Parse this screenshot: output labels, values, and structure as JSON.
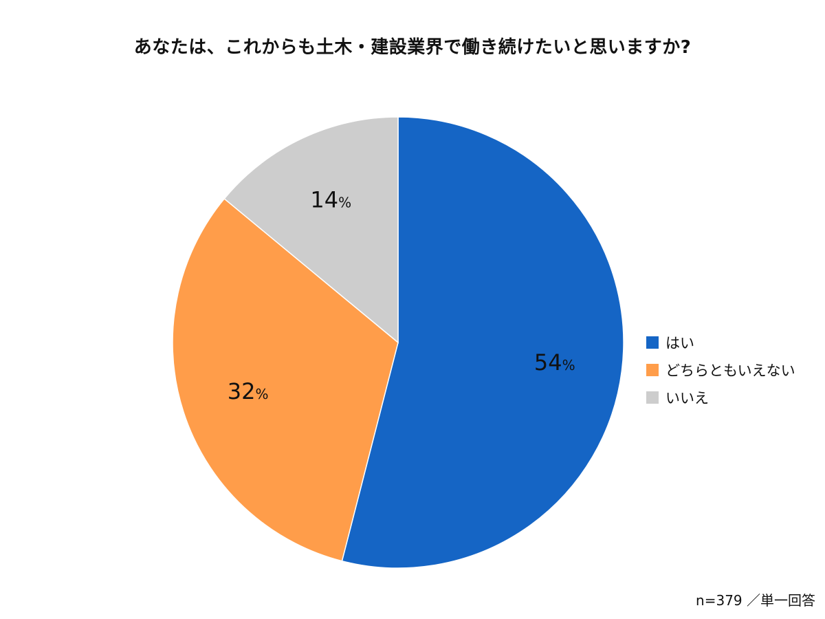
{
  "chart_data": {
    "type": "pie",
    "title": "あなたは、これからも土木・建設業界で働き続けたいと思いますか?",
    "categories": [
      "はい",
      "どちらともいえない",
      "いいえ"
    ],
    "values": [
      54,
      32,
      14
    ],
    "value_suffix": "%",
    "colors": [
      "#1565C5",
      "#FF9D4A",
      "#CDCDCD"
    ],
    "legend_position": "right",
    "start": "top",
    "direction": "clockwise"
  },
  "footnote": "n=379 ／単一回答"
}
